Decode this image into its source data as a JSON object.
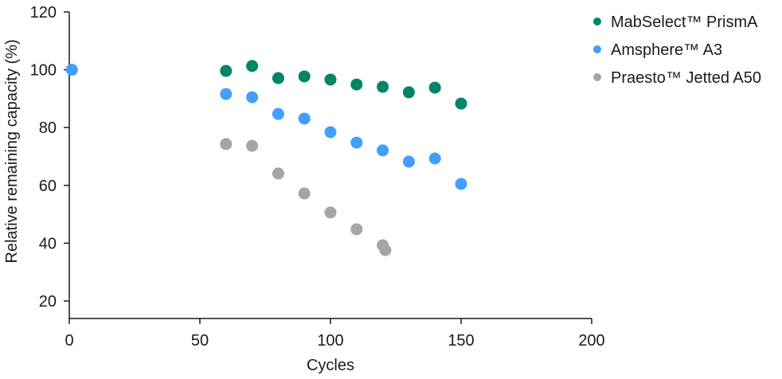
{
  "chart_data": {
    "type": "scatter",
    "title": "",
    "xlabel": "Cycles",
    "ylabel": "Relative remaining capacity (%)",
    "xlim": [
      0,
      200
    ],
    "ylim": [
      15,
      120
    ],
    "xticks": [
      0,
      50,
      100,
      150,
      200
    ],
    "yticks": [
      20,
      40,
      60,
      80,
      100,
      120
    ],
    "grid": false,
    "legend_position": "top-right",
    "series": [
      {
        "name": "MabSelect™ PrismA",
        "color": "#008566",
        "points": [
          [
            60,
            99.6
          ],
          [
            70,
            101.3
          ],
          [
            80,
            97.1
          ],
          [
            90,
            97.7
          ],
          [
            100,
            96.6
          ],
          [
            110,
            94.9
          ],
          [
            120,
            94.1
          ],
          [
            130,
            92.2
          ],
          [
            140,
            93.8
          ],
          [
            150,
            88.3
          ]
        ]
      },
      {
        "name": "Amsphere™ A3",
        "color": "#429EFF",
        "points": [
          [
            1,
            100
          ],
          [
            60,
            91.6
          ],
          [
            70,
            90.5
          ],
          [
            80,
            84.7
          ],
          [
            90,
            83.1
          ],
          [
            100,
            78.4
          ],
          [
            110,
            74.8
          ],
          [
            120,
            72.1
          ],
          [
            130,
            68.2
          ],
          [
            140,
            69.3
          ],
          [
            150,
            60.5
          ]
        ]
      },
      {
        "name": "Praesto™ Jetted A50",
        "color": "#A5A5A5",
        "points": [
          [
            60,
            74.3
          ],
          [
            70,
            73.7
          ],
          [
            80,
            64.1
          ],
          [
            90,
            57.2
          ],
          [
            100,
            50.6
          ],
          [
            110,
            44.8
          ],
          [
            120,
            39.3
          ],
          [
            121,
            37.6
          ]
        ]
      }
    ]
  }
}
